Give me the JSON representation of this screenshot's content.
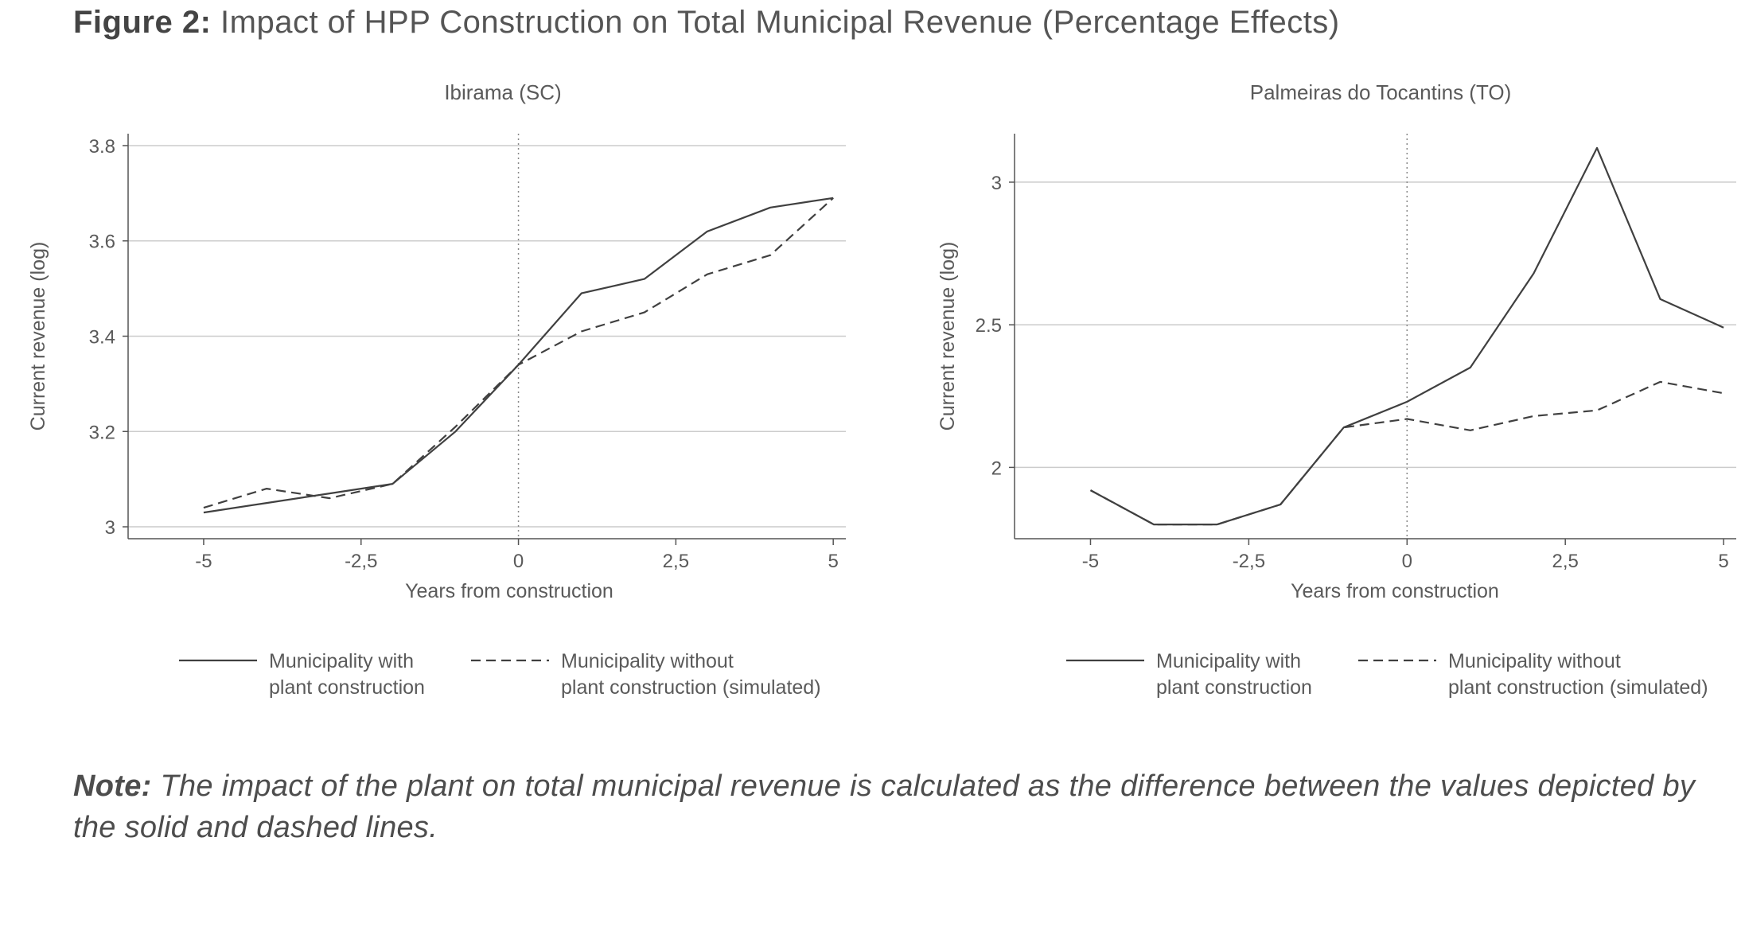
{
  "figure": {
    "title_prefix": "Figure 2:",
    "title_text": " Impact of HPP Construction on Total Municipal Revenue (Percentage Effects)",
    "note_prefix": "Note:",
    "note_text": " The impact of the plant on total municipal revenue is calculated as the difference between the values depicted by the solid and dashed lines."
  },
  "colors": {
    "line": "#404040",
    "grid": "#cccccc",
    "axis": "#555555",
    "text": "#5a5a5a"
  },
  "chart_data": [
    {
      "type": "line",
      "title": "Ibirama (SC)",
      "xlabel": "Years from construction",
      "ylabel": "Current revenue (log)",
      "xlim": [
        -6.2,
        5.2
      ],
      "ylim": [
        2.975,
        3.825
      ],
      "xticks": [
        -5,
        -2.5,
        0,
        2.5,
        5
      ],
      "xtick_labels": [
        "-5",
        "-2,5",
        "0",
        "2,5",
        "5"
      ],
      "yticks": [
        3,
        3.2,
        3.4,
        3.6,
        3.8
      ],
      "ytick_labels": [
        "3",
        "3.2",
        "3.4",
        "3.6",
        "3.8"
      ],
      "grid": "horizontal",
      "reference_line_x": 0,
      "x": [
        -5,
        -4,
        -3,
        -2,
        -1,
        0,
        1,
        2,
        3,
        4,
        5
      ],
      "series": [
        {
          "name": "Municipality with\nplant construction",
          "style": "solid",
          "values": [
            3.03,
            3.05,
            3.07,
            3.09,
            3.2,
            3.34,
            3.49,
            3.52,
            3.62,
            3.67,
            3.69
          ]
        },
        {
          "name": "Municipality without\nplant construction (simulated)",
          "style": "dashed",
          "values": [
            3.04,
            3.08,
            3.06,
            3.09,
            3.21,
            3.34,
            3.41,
            3.45,
            3.53,
            3.57,
            3.69
          ]
        }
      ],
      "legend": "bottom"
    },
    {
      "type": "line",
      "title": "Palmeiras do Tocantins (TO)",
      "xlabel": "Years from construction",
      "ylabel": "Current revenue (log)",
      "xlim": [
        -6.2,
        5.2
      ],
      "ylim": [
        1.75,
        3.17
      ],
      "xticks": [
        -5,
        -2.5,
        0,
        2.5,
        5
      ],
      "xtick_labels": [
        "-5",
        "-2,5",
        "0",
        "2,5",
        "5"
      ],
      "yticks": [
        2,
        2.5,
        3
      ],
      "ytick_labels": [
        "2",
        "2.5",
        "3"
      ],
      "grid": "horizontal",
      "reference_line_x": 0,
      "x": [
        -5,
        -4,
        -3,
        -2,
        -1,
        0,
        1,
        2,
        3,
        4,
        5
      ],
      "series": [
        {
          "name": "Municipality with\nplant construction",
          "style": "solid",
          "values": [
            1.92,
            1.8,
            1.8,
            1.87,
            2.14,
            2.23,
            2.35,
            2.68,
            3.12,
            2.59,
            2.49
          ]
        },
        {
          "name": "Municipality without\nplant construction (simulated)",
          "style": "dashed",
          "values": [
            1.92,
            1.8,
            1.8,
            1.87,
            2.14,
            2.17,
            2.13,
            2.18,
            2.2,
            2.3,
            2.26
          ]
        }
      ],
      "legend": "bottom"
    }
  ]
}
